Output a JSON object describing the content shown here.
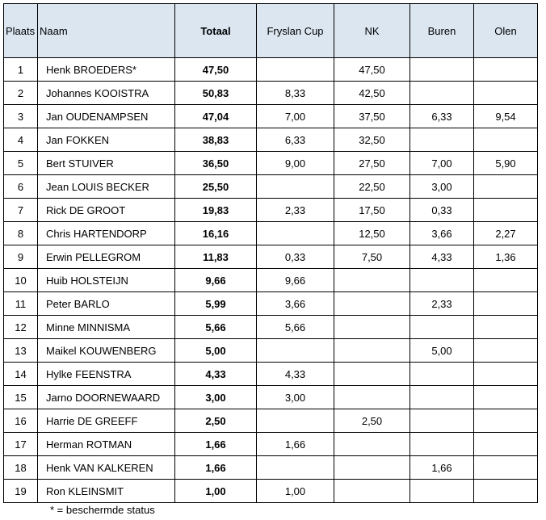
{
  "headers": {
    "plaats": "Plaats",
    "naam": "Naam",
    "totaal": "Totaal",
    "fryslan": "Fryslan Cup",
    "nk": "NK",
    "buren": "Buren",
    "olen": "Olen"
  },
  "rows": [
    {
      "plaats": "1",
      "naam": "Henk BROEDERS*",
      "totaal": "47,50",
      "fryslan": "",
      "nk": "47,50",
      "buren": "",
      "olen": ""
    },
    {
      "plaats": "2",
      "naam": "Johannes KOOISTRA",
      "totaal": "50,83",
      "fryslan": "8,33",
      "nk": "42,50",
      "buren": "",
      "olen": ""
    },
    {
      "plaats": "3",
      "naam": "Jan OUDENAMPSEN",
      "totaal": "47,04",
      "fryslan": "7,00",
      "nk": "37,50",
      "buren": "6,33",
      "olen": "9,54"
    },
    {
      "plaats": "4",
      "naam": "Jan FOKKEN",
      "totaal": "38,83",
      "fryslan": "6,33",
      "nk": "32,50",
      "buren": "",
      "olen": ""
    },
    {
      "plaats": "5",
      "naam": "Bert STUIVER",
      "totaal": "36,50",
      "fryslan": "9,00",
      "nk": "27,50",
      "buren": "7,00",
      "olen": "5,90"
    },
    {
      "plaats": "6",
      "naam": "Jean LOUIS BECKER",
      "totaal": "25,50",
      "fryslan": "",
      "nk": "22,50",
      "buren": "3,00",
      "olen": ""
    },
    {
      "plaats": "7",
      "naam": "Rick DE GROOT",
      "totaal": "19,83",
      "fryslan": "2,33",
      "nk": "17,50",
      "buren": "0,33",
      "olen": ""
    },
    {
      "plaats": "8",
      "naam": "Chris HARTENDORP",
      "totaal": "16,16",
      "fryslan": "",
      "nk": "12,50",
      "buren": "3,66",
      "olen": "2,27"
    },
    {
      "plaats": "9",
      "naam": "Erwin PELLEGROM",
      "totaal": "11,83",
      "fryslan": "0,33",
      "nk": "7,50",
      "buren": "4,33",
      "olen": "1,36"
    },
    {
      "plaats": "10",
      "naam": "Huib HOLSTEIJN",
      "totaal": "9,66",
      "fryslan": "9,66",
      "nk": "",
      "buren": "",
      "olen": ""
    },
    {
      "plaats": "11",
      "naam": "Peter BARLO",
      "totaal": "5,99",
      "fryslan": "3,66",
      "nk": "",
      "buren": "2,33",
      "olen": ""
    },
    {
      "plaats": "12",
      "naam": "Minne MINNISMA",
      "totaal": "5,66",
      "fryslan": "5,66",
      "nk": "",
      "buren": "",
      "olen": ""
    },
    {
      "plaats": "13",
      "naam": "Maikel KOUWENBERG",
      "totaal": "5,00",
      "fryslan": "",
      "nk": "",
      "buren": "5,00",
      "olen": ""
    },
    {
      "plaats": "14",
      "naam": "Hylke FEENSTRA",
      "totaal": "4,33",
      "fryslan": "4,33",
      "nk": "",
      "buren": "",
      "olen": ""
    },
    {
      "plaats": "15",
      "naam": "Jarno DOORNEWAARD",
      "totaal": "3,00",
      "fryslan": "3,00",
      "nk": "",
      "buren": "",
      "olen": ""
    },
    {
      "plaats": "16",
      "naam": "Harrie DE GREEFF",
      "totaal": "2,50",
      "fryslan": "",
      "nk": "2,50",
      "buren": "",
      "olen": ""
    },
    {
      "plaats": "17",
      "naam": "Herman ROTMAN",
      "totaal": "1,66",
      "fryslan": "1,66",
      "nk": "",
      "buren": "",
      "olen": ""
    },
    {
      "plaats": "18",
      "naam": "Henk VAN KALKEREN",
      "totaal": "1,66",
      "fryslan": "",
      "nk": "",
      "buren": "1,66",
      "olen": ""
    },
    {
      "plaats": "19",
      "naam": "Ron KLEINSMIT",
      "totaal": "1,00",
      "fryslan": "1,00",
      "nk": "",
      "buren": "",
      "olen": ""
    }
  ],
  "footnote": "* = beschermde status",
  "colors": {
    "header_bg": "#dce6f1",
    "border": "#000000"
  }
}
